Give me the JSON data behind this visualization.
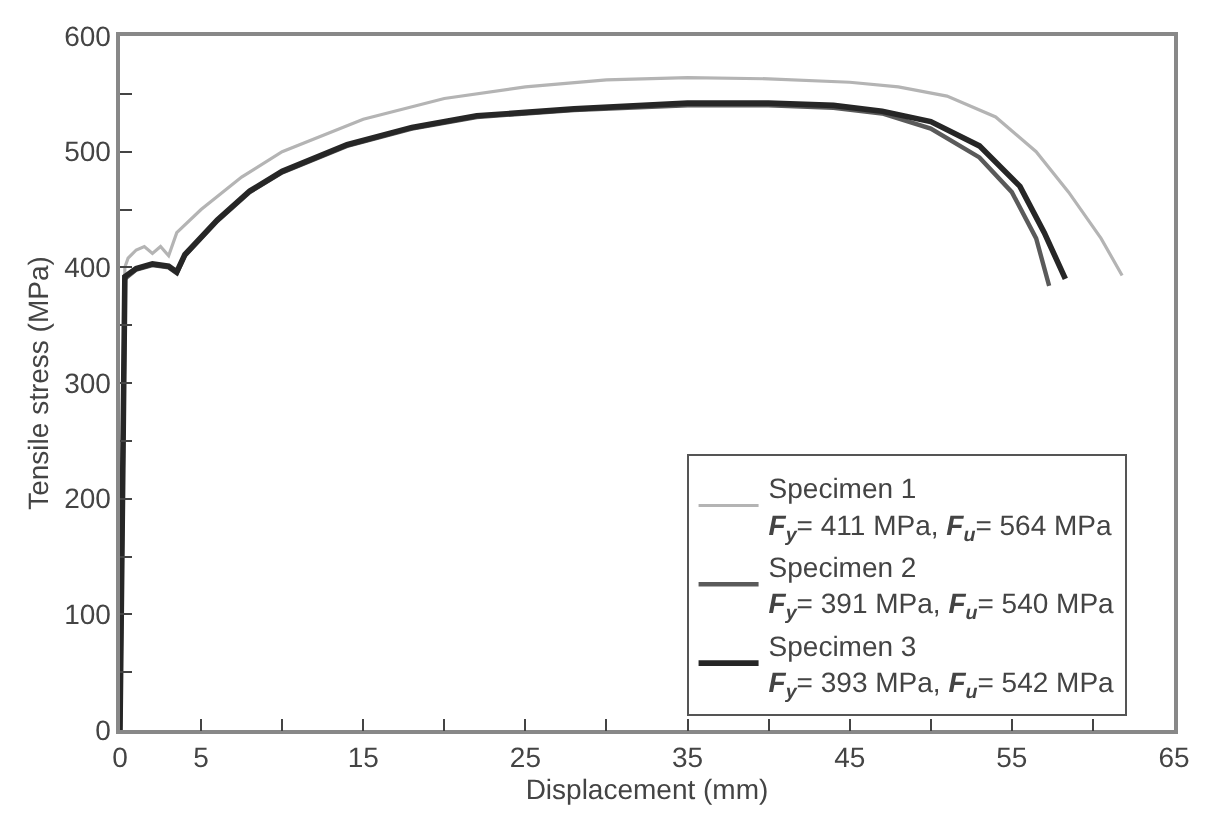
{
  "chart_data": {
    "type": "line",
    "xlabel": "Displacement (mm)",
    "ylabel": "Tensile stress (MPa)",
    "xlim": [
      0,
      65
    ],
    "xticks": [
      0,
      5,
      {
        "value": 10,
        "label": null
      },
      15,
      {
        "value": 20,
        "label": null
      },
      25,
      {
        "value": 30,
        "label": null
      },
      35,
      {
        "value": 40,
        "label": null
      },
      45,
      {
        "value": 50,
        "label": null
      },
      55,
      {
        "value": 60,
        "label": null
      },
      65
    ],
    "ylim": [
      0,
      600
    ],
    "yticks": [
      0,
      {
        "value": 50,
        "label": null
      },
      100,
      {
        "value": 150,
        "label": null
      },
      200,
      {
        "value": 250,
        "label": null
      },
      300,
      {
        "value": 350,
        "label": null
      },
      400,
      {
        "value": 450,
        "label": null
      },
      500,
      {
        "value": 550,
        "label": null
      },
      600
    ],
    "legend": "bottom right",
    "marker": "none",
    "line_style": "solid",
    "series": [
      {
        "name": "Specimen 1\nF$_{y}$= 411 MPa, F$_{u}$= 564 MPa",
        "color": "#b4b4b4",
        "x": [
          0,
          0.3,
          0.5,
          1,
          1.5,
          2,
          2.5,
          3,
          3.5,
          5,
          7.5,
          10,
          15,
          20,
          25,
          30,
          35,
          40,
          45,
          48,
          51,
          54,
          56.5,
          58.5,
          60.5,
          61.8
        ],
        "values": [
          0,
          400,
          408,
          415,
          418,
          412,
          418,
          410,
          430,
          450,
          478,
          500,
          528,
          546,
          556,
          562,
          564,
          563,
          560,
          556,
          548,
          530,
          500,
          465,
          425,
          393
        ]
      },
      {
        "name": "Specimen 2\nF$_{y}$= 391 MPa, F$_{u}$= 540 MPa",
        "color": "#5a5a5a",
        "x": [
          0,
          0.3,
          1,
          2,
          3,
          3.5,
          4,
          6,
          8,
          10,
          14,
          18,
          22,
          28,
          35,
          40,
          44,
          47,
          50,
          53,
          55,
          56.5,
          57.3
        ],
        "values": [
          0,
          390,
          398,
          402,
          400,
          395,
          410,
          440,
          465,
          482,
          505,
          520,
          530,
          536,
          540,
          540,
          538,
          533,
          520,
          495,
          465,
          425,
          384
        ]
      },
      {
        "name": "Specimen 3\nF$_{y}$= 393 MPa, F$_{u}$= 542 MPa",
        "color": "#262626",
        "x": [
          0,
          0.3,
          1,
          2,
          3,
          3.5,
          4,
          6,
          8,
          10,
          14,
          18,
          22,
          28,
          35,
          40,
          44,
          47,
          50,
          53,
          55.5,
          57,
          58.3
        ],
        "values": [
          0,
          392,
          399,
          403,
          401,
          396,
          411,
          441,
          466,
          483,
          506,
          521,
          531,
          537,
          542,
          542,
          540,
          535,
          526,
          505,
          470,
          430,
          390
        ]
      }
    ]
  }
}
